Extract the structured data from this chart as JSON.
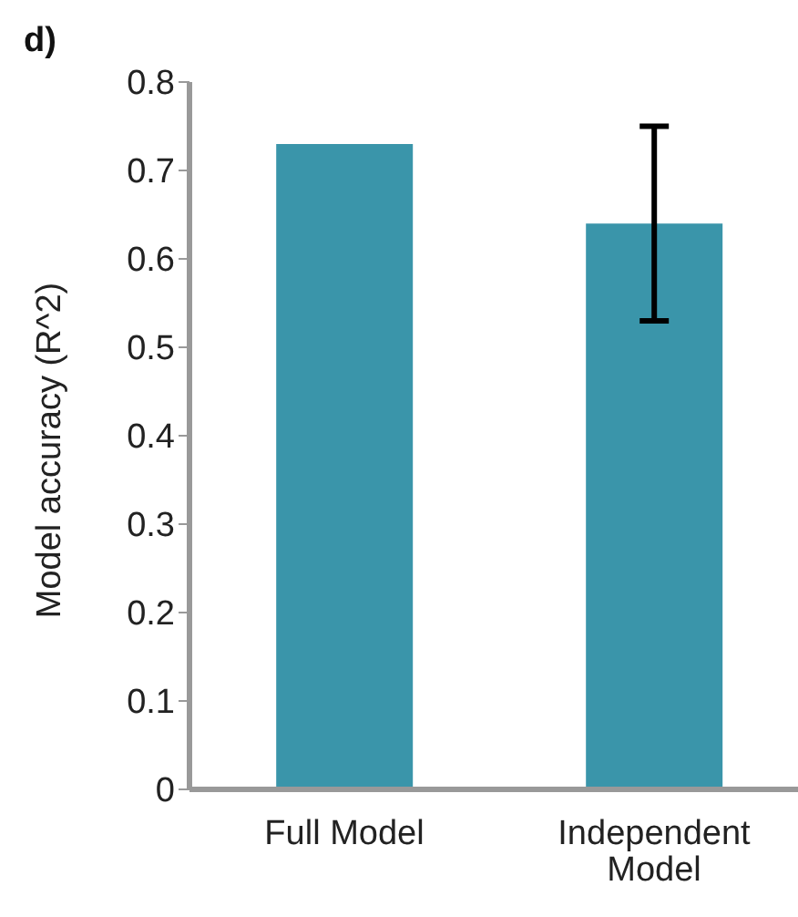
{
  "chart_data": {
    "type": "bar",
    "title": "d)",
    "ylabel": "Model accuracy (R^2)",
    "categories": [
      "Full Model",
      "Independent Model"
    ],
    "series": [
      {
        "color": "#3a95aa",
        "values": [
          0.73,
          0.64
        ],
        "errors": [
          null,
          [
            0.53,
            0.75
          ]
        ]
      }
    ],
    "ylim": [
      0,
      0.8
    ],
    "yticks": [
      0,
      0.1,
      0.2,
      0.3,
      0.4,
      0.5,
      0.6,
      0.7,
      0.8
    ],
    "grid": false,
    "legend": false
  }
}
